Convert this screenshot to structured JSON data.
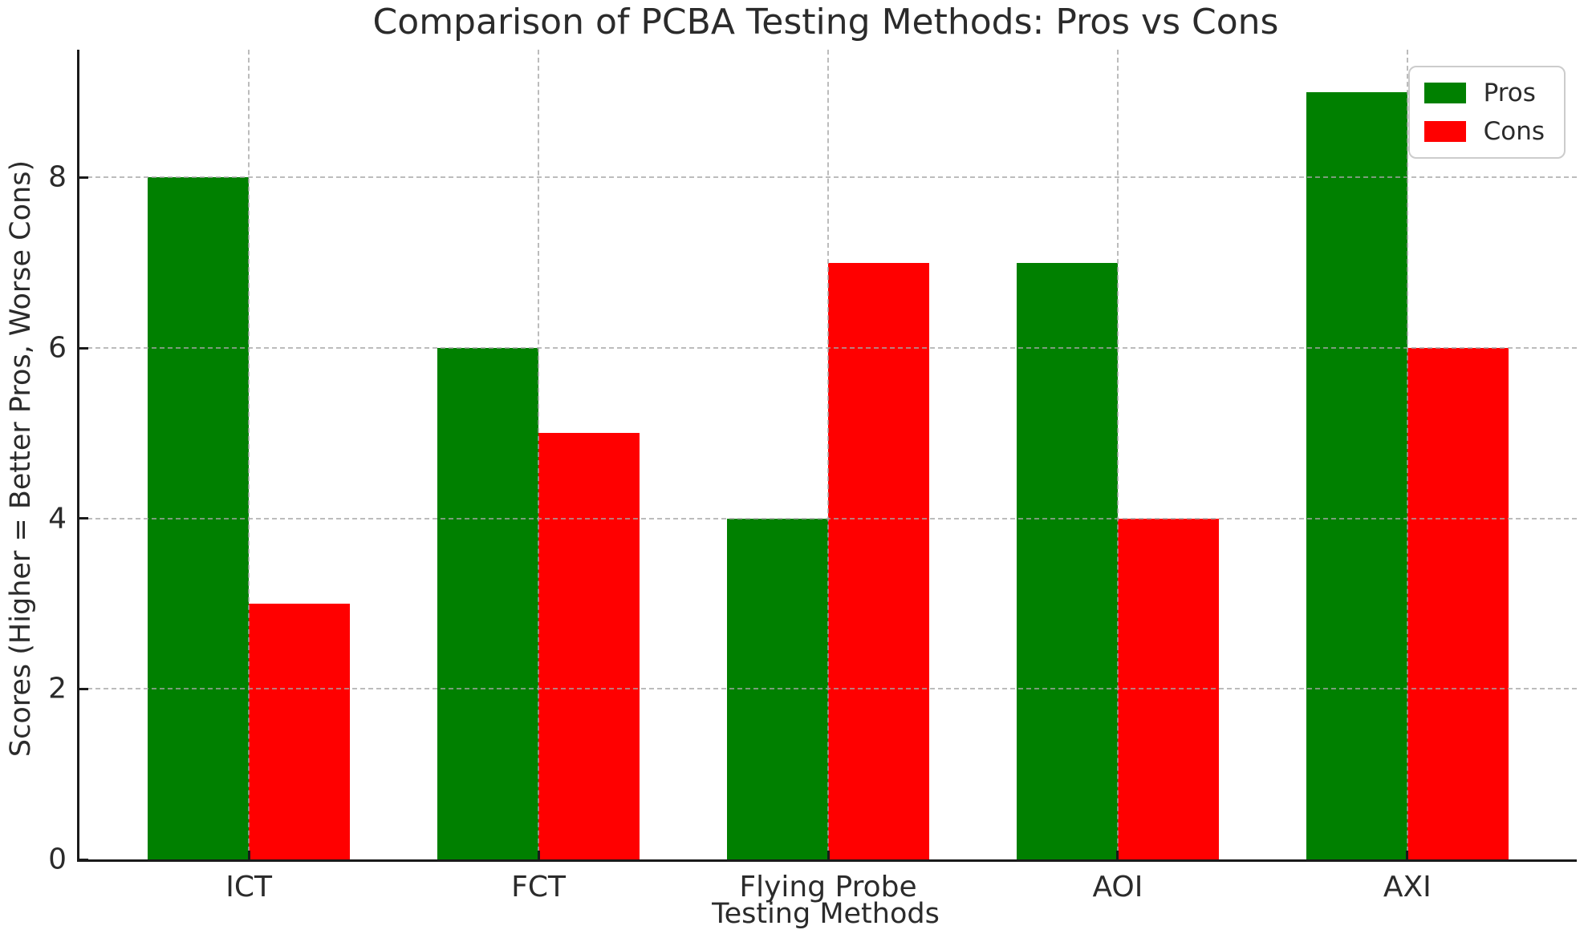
{
  "figure": {
    "background": "#ffffff",
    "text_color": "#2b2b2b"
  },
  "chart_data": {
    "type": "bar",
    "title": "Comparison of PCBA Testing Methods: Pros vs Cons",
    "xlabel": "Testing Methods",
    "ylabel": "Scores (Higher = Better Pros, Worse Cons)",
    "categories": [
      "ICT",
      "FCT",
      "Flying Probe",
      "AOI",
      "AXI"
    ],
    "series": [
      {
        "name": "Pros",
        "color": "#008000",
        "values": [
          8,
          6,
          4,
          7,
          9
        ]
      },
      {
        "name": "Cons",
        "color": "#ff0000",
        "values": [
          3,
          5,
          7,
          4,
          6
        ]
      }
    ],
    "ylim": [
      0,
      9.5
    ],
    "yticks": [
      0,
      2,
      4,
      6,
      8
    ],
    "bar_width": 0.35,
    "grid": {
      "enabled": true,
      "style": "dashed",
      "color": "#b0b0b0",
      "axisbelow": false
    },
    "legend": {
      "position": "upper right"
    },
    "spine_color": "#1a1a1a"
  }
}
